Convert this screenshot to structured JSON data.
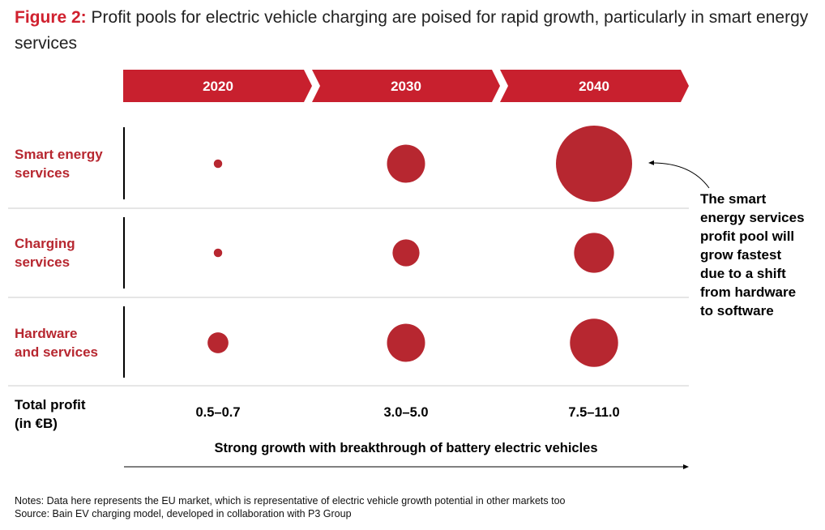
{
  "title": {
    "figure_label": "Figure 2:",
    "text": "Profit pools for electric vehicle charging are poised for rapid growth, particularly in smart energy services"
  },
  "chart_data": {
    "type": "bubble",
    "columns": [
      "2020",
      "2030",
      "2040"
    ],
    "rows": [
      {
        "label_lines": [
          "Smart energy",
          "services"
        ],
        "values": [
          0.05,
          1.0,
          4.0
        ]
      },
      {
        "label_lines": [
          "Charging",
          "services"
        ],
        "values": [
          0.05,
          0.5,
          1.1
        ]
      },
      {
        "label_lines": [
          "Hardware",
          "and services"
        ],
        "values": [
          0.3,
          1.0,
          1.6
        ]
      }
    ],
    "value_note": "relative profit pool size (estimated from bubble area)",
    "total_label_lines": [
      "Total profit",
      "(in €B)"
    ],
    "totals": [
      "0.5–0.7",
      "3.0–5.0",
      "7.5–11.0"
    ],
    "growth_caption": "Strong growth with breakthrough of battery electric vehicles",
    "annotation_lines": [
      "The smart",
      "energy services",
      "profit pool will",
      "grow fastest",
      "due to a shift",
      "from hardware",
      "to software"
    ]
  },
  "colors": {
    "accent": "#b72730",
    "header_fill": "#c8202e",
    "row_label": "#b72730",
    "divider": "#cccccc"
  },
  "notes": {
    "line1": "Notes: Data here represents the EU market, which is representative of electric vehicle growth potential in other markets too",
    "line2": "Source: Bain EV charging model, developed in collaboration with P3 Group"
  }
}
